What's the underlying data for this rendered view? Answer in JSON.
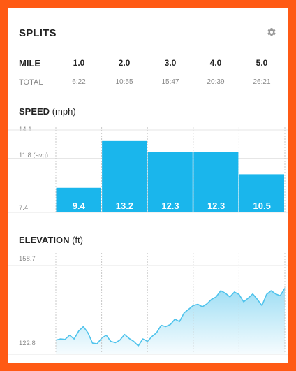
{
  "splits": {
    "title": "SPLITS",
    "settings_icon": "gear-icon",
    "mile_label": "MILE",
    "total_label": "TOTAL",
    "miles": [
      "1.0",
      "2.0",
      "3.0",
      "4.0",
      "5.0"
    ],
    "totals": [
      "6:22",
      "10:55",
      "15:47",
      "20:39",
      "26:21"
    ]
  },
  "speed": {
    "title": "SPEED",
    "unit": "(mph)",
    "y_max_label": "14.1",
    "y_avg_label": "11.8 (avg)",
    "y_min_label": "7.4",
    "color": "#1ab6ec"
  },
  "elevation": {
    "title": "ELEVATION",
    "unit": "(ft)",
    "y_max_label": "158.7",
    "y_min_label": "122.8",
    "color": "#4fc3ec"
  },
  "chart_data": [
    {
      "type": "bar",
      "title": "SPEED (mph)",
      "categories": [
        "1.0",
        "2.0",
        "3.0",
        "4.0",
        "5.0"
      ],
      "values": [
        9.4,
        13.2,
        12.3,
        12.3,
        10.5
      ],
      "value_labels": [
        "9.4",
        "13.2",
        "12.3",
        "12.3",
        "10.5"
      ],
      "ylim": [
        7.4,
        14.1
      ],
      "avg": 11.8,
      "grid": true
    },
    {
      "type": "area",
      "title": "ELEVATION (ft)",
      "x": [
        0.0,
        0.1,
        0.2,
        0.3,
        0.4,
        0.5,
        0.6,
        0.7,
        0.8,
        0.9,
        1.0,
        1.1,
        1.2,
        1.3,
        1.4,
        1.5,
        1.6,
        1.7,
        1.8,
        1.9,
        2.0,
        2.1,
        2.2,
        2.3,
        2.4,
        2.5,
        2.6,
        2.7,
        2.8,
        2.9,
        3.0,
        3.1,
        3.2,
        3.3,
        3.4,
        3.5,
        3.6,
        3.7,
        3.8,
        3.9,
        4.0,
        4.1,
        4.2,
        4.3,
        4.4,
        4.5,
        4.6,
        4.7,
        4.8,
        4.9,
        5.0
      ],
      "y": [
        128.5,
        129.0,
        128.8,
        130.5,
        129.0,
        132.2,
        134.0,
        131.5,
        127.3,
        127.0,
        129.3,
        130.5,
        128.0,
        127.5,
        128.5,
        130.8,
        129.2,
        128.0,
        126.2,
        129.0,
        128.0,
        130.0,
        131.5,
        134.5,
        134.0,
        134.8,
        137.0,
        136.0,
        139.5,
        141.0,
        142.5,
        143.0,
        142.0,
        143.2,
        145.0,
        146.0,
        148.5,
        147.5,
        146.0,
        148.0,
        147.0,
        144.0,
        145.5,
        147.2,
        145.0,
        142.5,
        147.0,
        148.5,
        147.2,
        146.5,
        149.5
      ],
      "ylim": [
        122.8,
        158.7
      ],
      "grid": true
    }
  ]
}
